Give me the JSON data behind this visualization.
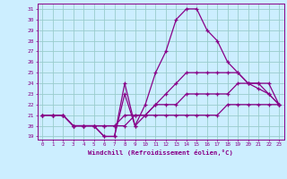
{
  "xlabel": "Windchill (Refroidissement éolien,°C)",
  "xlim": [
    -0.5,
    23.5
  ],
  "ylim": [
    18.7,
    31.5
  ],
  "yticks": [
    19,
    20,
    21,
    22,
    23,
    24,
    25,
    26,
    27,
    28,
    29,
    30,
    31
  ],
  "xticks": [
    0,
    1,
    2,
    3,
    4,
    5,
    6,
    7,
    8,
    9,
    10,
    11,
    12,
    13,
    14,
    15,
    16,
    17,
    18,
    19,
    20,
    21,
    22,
    23
  ],
  "bg_color": "#cceeff",
  "line_color": "#880088",
  "grid_color": "#99cccc",
  "lines": [
    {
      "x": [
        0,
        1,
        2,
        3,
        4,
        5,
        6,
        7,
        8,
        9,
        10,
        11,
        12,
        13,
        14,
        15,
        16,
        17,
        18,
        19,
        20,
        21,
        22,
        23
      ],
      "y": [
        21,
        21,
        21,
        20,
        20,
        20,
        20,
        20,
        20,
        21,
        21,
        21,
        21,
        21,
        21,
        21,
        21,
        21,
        22,
        22,
        22,
        22,
        22,
        22
      ]
    },
    {
      "x": [
        0,
        1,
        2,
        3,
        4,
        5,
        6,
        7,
        8,
        9,
        10,
        11,
        12,
        13,
        14,
        15,
        16,
        17,
        18,
        19,
        20,
        21,
        22,
        23
      ],
      "y": [
        21,
        21,
        21,
        20,
        20,
        20,
        20,
        20,
        21,
        21,
        21,
        22,
        22,
        22,
        23,
        23,
        23,
        23,
        23,
        24,
        24,
        24,
        24,
        22
      ]
    },
    {
      "x": [
        0,
        1,
        2,
        3,
        4,
        5,
        6,
        7,
        8,
        9,
        10,
        11,
        12,
        13,
        14,
        15,
        16,
        17,
        18,
        19,
        20,
        21,
        22,
        23
      ],
      "y": [
        21,
        21,
        21,
        20,
        20,
        20,
        19,
        19,
        24,
        20,
        21,
        22,
        23,
        24,
        25,
        25,
        25,
        25,
        25,
        25,
        24,
        24,
        23,
        22
      ]
    },
    {
      "x": [
        0,
        1,
        2,
        3,
        4,
        5,
        6,
        7,
        8,
        9,
        10,
        11,
        12,
        13,
        14,
        15,
        16,
        17,
        18,
        19,
        20,
        21,
        22,
        23
      ],
      "y": [
        21,
        21,
        21,
        20,
        20,
        20,
        19,
        19,
        23,
        20,
        22,
        25,
        27,
        30,
        31,
        31,
        29,
        28,
        26,
        25,
        24,
        23.5,
        23,
        22
      ]
    }
  ]
}
